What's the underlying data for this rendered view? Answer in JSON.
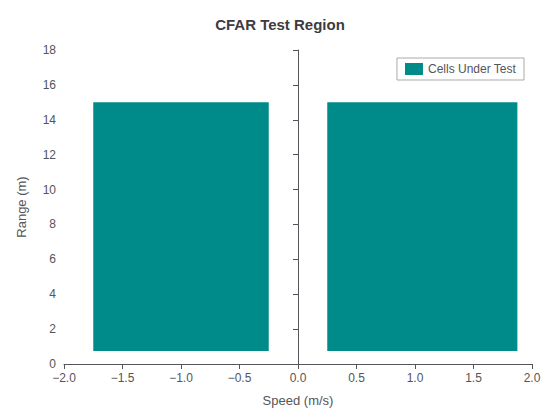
{
  "chart_data": {
    "type": "rectangle",
    "title": "CFAR Test Region",
    "xlabel": "Speed (m/s)",
    "ylabel": "Range (m)",
    "xlim": [
      -2,
      2
    ],
    "ylim": [
      0,
      18
    ],
    "xticks": [
      {
        "value": -2,
        "label": "−2.0"
      },
      {
        "value": -1.5,
        "label": "−1.5"
      },
      {
        "value": -1,
        "label": "−1.0"
      },
      {
        "value": -0.5,
        "label": "−0.5"
      },
      {
        "value": 0,
        "label": "0.0"
      },
      0.5,
      {
        "value": 1,
        "label": "1.0"
      },
      1.5,
      {
        "value": 2,
        "label": "2.0"
      }
    ],
    "yticks": [
      0,
      2,
      4,
      6,
      8,
      10,
      12,
      14,
      16,
      18
    ],
    "series": [
      {
        "name": "Cells Under Test",
        "color": "#008B8B",
        "rects": [
          {
            "x": -1.75,
            "y": 0.75,
            "width": 1.5,
            "height": 14.25
          },
          {
            "x": 0.25,
            "y": 0.75,
            "width": 1.625,
            "height": 14.25
          }
        ]
      }
    ],
    "legend": "upper right",
    "grid": false
  }
}
